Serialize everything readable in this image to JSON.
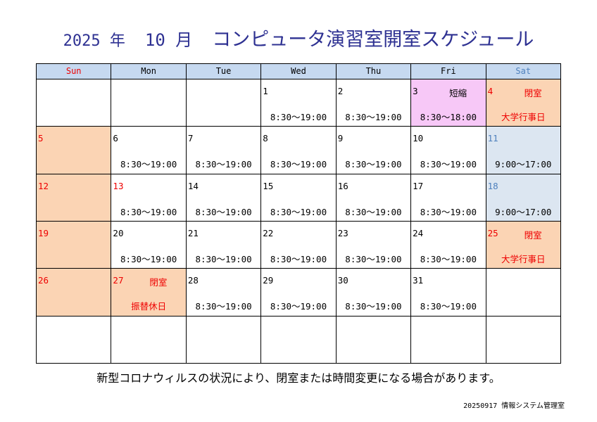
{
  "header": {
    "title_parts": [
      "2025 年",
      "10 月",
      "コンピュータ演習室開室スケジュール"
    ]
  },
  "calendar": {
    "weekdays": [
      "Sun",
      "Mon",
      "Tue",
      "Wed",
      "Thu",
      "Fri",
      "Sat"
    ],
    "weeks": [
      [
        null,
        null,
        null,
        {
          "day": "1",
          "hours": "8:30～19:00"
        },
        {
          "day": "2",
          "hours": "8:30～19:00"
        },
        {
          "day": "3",
          "note": "短縮",
          "hours": "8:30～18:00",
          "kind": "short"
        },
        {
          "day": "4",
          "note": "閉室",
          "sub": "大学行事日",
          "kind": "closed"
        }
      ],
      [
        {
          "day": "5",
          "kind": "closed"
        },
        {
          "day": "6",
          "hours": "8:30～19:00"
        },
        {
          "day": "7",
          "hours": "8:30～19:00"
        },
        {
          "day": "8",
          "hours": "8:30～19:00"
        },
        {
          "day": "9",
          "hours": "8:30～19:00"
        },
        {
          "day": "10",
          "hours": "8:30～19:00"
        },
        {
          "day": "11",
          "hours": "9:00～17:00",
          "kind": "sat"
        }
      ],
      [
        {
          "day": "12",
          "kind": "closed"
        },
        {
          "day": "13",
          "hours": "8:30～19:00",
          "kind": "holiday"
        },
        {
          "day": "14",
          "hours": "8:30～19:00"
        },
        {
          "day": "15",
          "hours": "8:30～19:00"
        },
        {
          "day": "16",
          "hours": "8:30～19:00"
        },
        {
          "day": "17",
          "hours": "8:30～19:00"
        },
        {
          "day": "18",
          "hours": "9:00～17:00",
          "kind": "sat"
        }
      ],
      [
        {
          "day": "19",
          "kind": "closed"
        },
        {
          "day": "20",
          "hours": "8:30～19:00"
        },
        {
          "day": "21",
          "hours": "8:30～19:00"
        },
        {
          "day": "22",
          "hours": "8:30～19:00"
        },
        {
          "day": "23",
          "hours": "8:30～19:00"
        },
        {
          "day": "24",
          "hours": "8:30～19:00"
        },
        {
          "day": "25",
          "note": "閉室",
          "sub": "大学行事日",
          "kind": "closed"
        }
      ],
      [
        {
          "day": "26",
          "kind": "closed"
        },
        {
          "day": "27",
          "note": "閉室",
          "sub": "振替休日",
          "kind": "closed"
        },
        {
          "day": "28",
          "hours": "8:30～19:00"
        },
        {
          "day": "29",
          "hours": "8:30～19:00"
        },
        {
          "day": "30",
          "hours": "8:30～19:00"
        },
        {
          "day": "31",
          "hours": "8:30～19:00"
        },
        null
      ],
      [
        null,
        null,
        null,
        null,
        null,
        null,
        null
      ]
    ]
  },
  "footer": {
    "notice": "新型コロナウィルスの状況により、閉室または時間変更になる場合があります。",
    "issuer": "20250917 情報システム管理室"
  }
}
